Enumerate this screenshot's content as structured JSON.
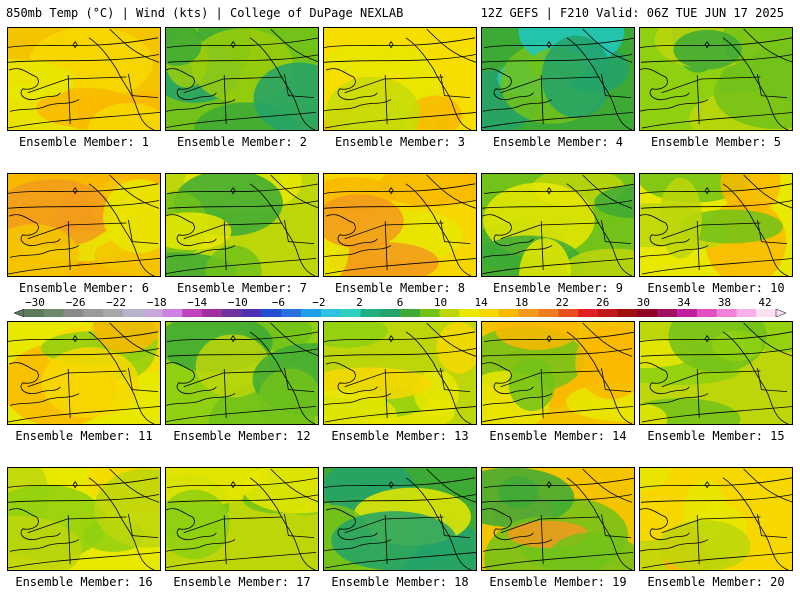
{
  "header": {
    "left": "850mb Temp (°C) | Wind (kts) | College of DuPage NEXLAB",
    "right": "12Z GEFS | F210 Valid: 06Z TUE JUN 17 2025"
  },
  "members": [
    {
      "label": "Ensemble Member: 1",
      "palette": [
        "#f5c400",
        "#f6d800",
        "#e8e800",
        "#f9b800"
      ]
    },
    {
      "label": "Ensemble Member: 2",
      "palette": [
        "#72c21a",
        "#3daa36",
        "#23a36a",
        "#9acd0c"
      ]
    },
    {
      "label": "Ensemble Member: 3",
      "palette": [
        "#f6de00",
        "#e8e800",
        "#f9b800",
        "#c8dc08"
      ]
    },
    {
      "label": "Ensemble Member: 4",
      "palette": [
        "#3daa36",
        "#23a36a",
        "#1ec9c0",
        "#72c21a"
      ]
    },
    {
      "label": "Ensemble Member: 5",
      "palette": [
        "#8fd010",
        "#72c21a",
        "#3daa36",
        "#bdd60a"
      ]
    },
    {
      "label": "Ensemble Member: 6",
      "palette": [
        "#f9b800",
        "#f5c400",
        "#f39a1c",
        "#e8e800"
      ]
    },
    {
      "label": "Ensemble Member: 7",
      "palette": [
        "#bdd60a",
        "#72c21a",
        "#e8e800",
        "#3daa36"
      ]
    },
    {
      "label": "Ensemble Member: 8",
      "palette": [
        "#f6d800",
        "#f9b800",
        "#e8e800",
        "#f39a1c"
      ]
    },
    {
      "label": "Ensemble Member: 9",
      "palette": [
        "#72c21a",
        "#3daa36",
        "#bdd60a",
        "#e8e800"
      ]
    },
    {
      "label": "Ensemble Member: 10",
      "palette": [
        "#e8e800",
        "#bdd60a",
        "#f9b800",
        "#72c21a"
      ]
    },
    {
      "label": "Ensemble Member: 11",
      "palette": [
        "#e8e800",
        "#f6d800",
        "#8fd010",
        "#f9b800"
      ]
    },
    {
      "label": "Ensemble Member: 12",
      "palette": [
        "#8fd010",
        "#72c21a",
        "#bdd60a",
        "#3daa36"
      ]
    },
    {
      "label": "Ensemble Member: 13",
      "palette": [
        "#bdd60a",
        "#e8e800",
        "#f6d800",
        "#8fd010"
      ]
    },
    {
      "label": "Ensemble Member: 14",
      "palette": [
        "#f5c400",
        "#f9b800",
        "#e8e800",
        "#72c21a"
      ]
    },
    {
      "label": "Ensemble Member: 15",
      "palette": [
        "#bdd60a",
        "#8fd010",
        "#e8e800",
        "#72c21a"
      ]
    },
    {
      "label": "Ensemble Member: 16",
      "palette": [
        "#e8e800",
        "#bdd60a",
        "#f6d800",
        "#8fd010"
      ]
    },
    {
      "label": "Ensemble Member: 17",
      "palette": [
        "#bdd60a",
        "#8fd010",
        "#72c21a",
        "#e8e800"
      ]
    },
    {
      "label": "Ensemble Member: 18",
      "palette": [
        "#3daa36",
        "#23a36a",
        "#e8e800",
        "#72c21a"
      ]
    },
    {
      "label": "Ensemble Member: 19",
      "palette": [
        "#f5c400",
        "#72c21a",
        "#f39a1c",
        "#3daa36"
      ]
    },
    {
      "label": "Ensemble Member: 20",
      "palette": [
        "#f6d800",
        "#e8e800",
        "#f9b800",
        "#bdd60a"
      ]
    }
  ],
  "colorbar": {
    "ticks": [
      "-30",
      "-26",
      "-22",
      "-18",
      "-14",
      "-10",
      "-6",
      "-2",
      "2",
      "6",
      "10",
      "14",
      "18",
      "22",
      "26",
      "30",
      "34",
      "38",
      "42"
    ],
    "colors": [
      "#5d7a5d",
      "#6e8a6e",
      "#8a8a8a",
      "#9a9a9a",
      "#a8a8a8",
      "#b4b4c8",
      "#c8a8d8",
      "#d080e0",
      "#c040c0",
      "#a030a0",
      "#7030a0",
      "#5030b0",
      "#2050d0",
      "#2a70e0",
      "#20a0e8",
      "#30c0e0",
      "#30d0c0",
      "#20b080",
      "#23a36a",
      "#3daa36",
      "#72c21a",
      "#bdd60a",
      "#e8e800",
      "#f6d800",
      "#f9b800",
      "#f39a1c",
      "#ee7d1f",
      "#e85020",
      "#e02020",
      "#c01818",
      "#a01010",
      "#900020",
      "#a01060",
      "#c020a0",
      "#e050c0",
      "#f080d8",
      "#f8b0e8",
      "#fce0f4"
    ]
  }
}
